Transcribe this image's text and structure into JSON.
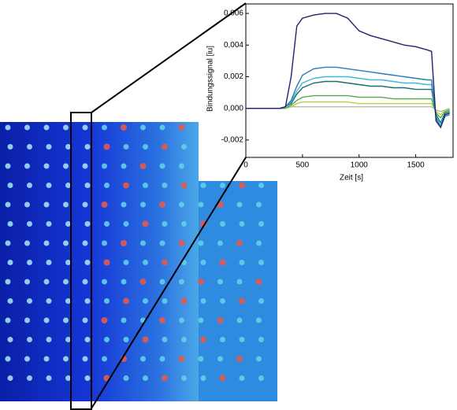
{
  "chart_data": {
    "type": "line",
    "xlabel": "Zeit [s]",
    "ylabel": "Bindungssignal [iu]",
    "x": [
      0,
      100,
      200,
      300,
      350,
      400,
      450,
      500,
      600,
      700,
      800,
      900,
      1000,
      1100,
      1200,
      1300,
      1400,
      1500,
      1600,
      1640,
      1680,
      1720,
      1760,
      1800
    ],
    "xlim": [
      0,
      1830
    ],
    "xticks": [
      0,
      500,
      1000,
      1500
    ],
    "ylim": [
      -0.0031,
      0.0066
    ],
    "yticks": [
      {
        "value": 0.006,
        "label": "0,006"
      },
      {
        "value": 0.004,
        "label": "0,004"
      },
      {
        "value": 0.002,
        "label": "0,002"
      },
      {
        "value": 0,
        "label": "0,000"
      },
      {
        "value": -0.002,
        "label": "-0,002"
      }
    ],
    "series": [
      {
        "color": "#b8b8b8",
        "values": [
          0,
          0,
          0,
          0,
          0,
          0.0001,
          0.0001,
          0.0001,
          0.0001,
          0.0001,
          0.0001,
          0.0001,
          0.0001,
          0.0001,
          0.0001,
          0.0001,
          0.0001,
          0.0001,
          0.0001,
          0.0001,
          -0.0001,
          -0.0002,
          -0.0001,
          0
        ]
      },
      {
        "color": "#b5cf3c",
        "values": [
          0,
          0,
          0,
          0,
          0,
          0.0001,
          0.0003,
          0.0004,
          0.0004,
          0.0004,
          0.0004,
          0.0004,
          0.0003,
          0.0003,
          0.0003,
          0.0003,
          0.0003,
          0.0003,
          0.0003,
          0.0003,
          -0.0002,
          -0.0004,
          -0.0001,
          -0.0001
        ]
      },
      {
        "color": "#4faa4a",
        "values": [
          0,
          0,
          0,
          0,
          0,
          0.0002,
          0.0005,
          0.0007,
          0.0008,
          0.0008,
          0.0008,
          0.0008,
          0.0007,
          0.0007,
          0.0007,
          0.0006,
          0.0006,
          0.0006,
          0.0006,
          0.0006,
          -0.0003,
          -0.0006,
          -0.0002,
          -0.0001
        ]
      },
      {
        "color": "#1a6f6a",
        "values": [
          0,
          0,
          0,
          0,
          0.0001,
          0.0003,
          0.0009,
          0.0013,
          0.0016,
          0.0017,
          0.0017,
          0.0016,
          0.0015,
          0.0014,
          0.0014,
          0.0013,
          0.0013,
          0.0012,
          0.0012,
          0.0012,
          -0.0004,
          -0.0009,
          -0.0003,
          -0.0002
        ]
      },
      {
        "color": "#3cb8d8",
        "values": [
          0,
          0,
          0,
          0,
          0.0001,
          0.0004,
          0.0011,
          0.0016,
          0.0019,
          0.002,
          0.002,
          0.002,
          0.0019,
          0.0018,
          0.0018,
          0.0017,
          0.0016,
          0.0016,
          0.0015,
          0.0015,
          -0.0005,
          -0.001,
          -0.0004,
          -0.0003
        ]
      },
      {
        "color": "#2b7bb8",
        "values": [
          0,
          0,
          0,
          0,
          0.0001,
          0.0005,
          0.0014,
          0.0021,
          0.0025,
          0.0026,
          0.0026,
          0.0025,
          0.0024,
          0.0023,
          0.0022,
          0.0021,
          0.002,
          0.0019,
          0.0018,
          0.0018,
          -0.0006,
          -0.0012,
          -0.0005,
          -0.0004
        ]
      },
      {
        "color": "#23236b",
        "values": [
          0,
          0,
          0,
          0,
          0.0001,
          0.002,
          0.0052,
          0.0057,
          0.0059,
          0.006,
          0.006,
          0.0057,
          0.0049,
          0.0046,
          0.0044,
          0.0042,
          0.004,
          0.0039,
          0.0037,
          0.0036,
          -0.0008,
          -0.0012,
          -0.0004,
          -0.0003
        ]
      }
    ]
  }
}
